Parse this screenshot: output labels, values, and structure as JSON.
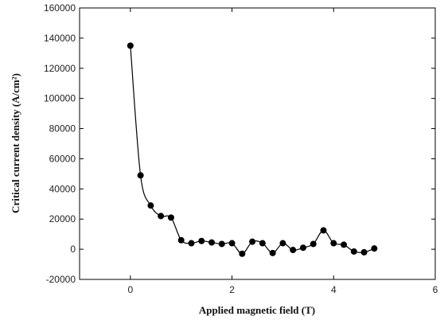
{
  "chart_data": {
    "type": "line",
    "title": "",
    "xlabel": "Applied magnetic field (T)",
    "ylabel": "Critical current density (A/cm²)",
    "xlim": [
      -1,
      6
    ],
    "ylim": [
      -20000,
      160000
    ],
    "xticks": [
      0,
      2,
      4,
      6
    ],
    "yticks": [
      -20000,
      0,
      20000,
      40000,
      60000,
      80000,
      100000,
      120000,
      140000,
      160000
    ],
    "grid": false,
    "marker": "filled-circle",
    "line_style": "smooth",
    "series": [
      {
        "x": [
          0.0,
          0.2,
          0.4,
          0.6,
          0.8,
          1.0,
          1.2,
          1.4,
          1.6,
          1.8,
          2.0,
          2.2,
          2.4,
          2.6,
          2.8,
          3.0,
          3.2,
          3.4,
          3.6,
          3.8,
          4.0,
          4.2,
          4.4,
          4.6,
          4.8
        ],
        "values": [
          135000,
          49000,
          29000,
          22000,
          21000,
          6000,
          4000,
          5500,
          4500,
          3500,
          4000,
          -3000,
          5000,
          4000,
          -2500,
          4000,
          -500,
          1000,
          3500,
          12500,
          4000,
          3000,
          -1500,
          -2000,
          500
        ]
      }
    ]
  }
}
